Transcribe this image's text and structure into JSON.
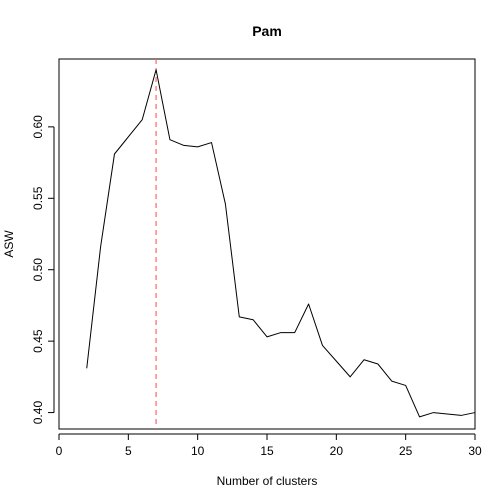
{
  "chart_data": {
    "type": "line",
    "title": "Pam",
    "xlabel": "Number of clusters",
    "ylabel": "ASW",
    "xlim": [
      0,
      30
    ],
    "ylim": [
      0.3885,
      0.6475
    ],
    "x_ticks": [
      0,
      5,
      10,
      15,
      20,
      25,
      30
    ],
    "y_ticks": [
      0.4,
      0.45,
      0.5,
      0.55,
      0.6
    ],
    "x_tick_labels": [
      "0",
      "5",
      "10",
      "15",
      "20",
      "25",
      "30"
    ],
    "y_tick_labels": [
      "0.40",
      "0.45",
      "0.50",
      "0.55",
      "0.60"
    ],
    "grid": false,
    "series": [
      {
        "color": "#000000",
        "x": [
          2,
          3,
          4,
          5,
          6,
          7,
          8,
          9,
          10,
          11,
          12,
          13,
          14,
          15,
          16,
          17,
          18,
          19,
          20,
          21,
          22,
          23,
          24,
          25,
          26,
          27,
          28,
          29,
          30
        ],
        "y": [
          0.431,
          0.516,
          0.581,
          0.593,
          0.605,
          0.64,
          0.591,
          0.587,
          0.586,
          0.589,
          0.546,
          0.467,
          0.465,
          0.453,
          0.456,
          0.456,
          0.476,
          0.447,
          0.436,
          0.425,
          0.437,
          0.434,
          0.422,
          0.419,
          0.397,
          0.4,
          0.399,
          0.398,
          0.4
        ]
      }
    ],
    "annotations": [
      {
        "type": "vline",
        "x": 7,
        "color": "#ff6666",
        "style": "dashed"
      }
    ]
  }
}
